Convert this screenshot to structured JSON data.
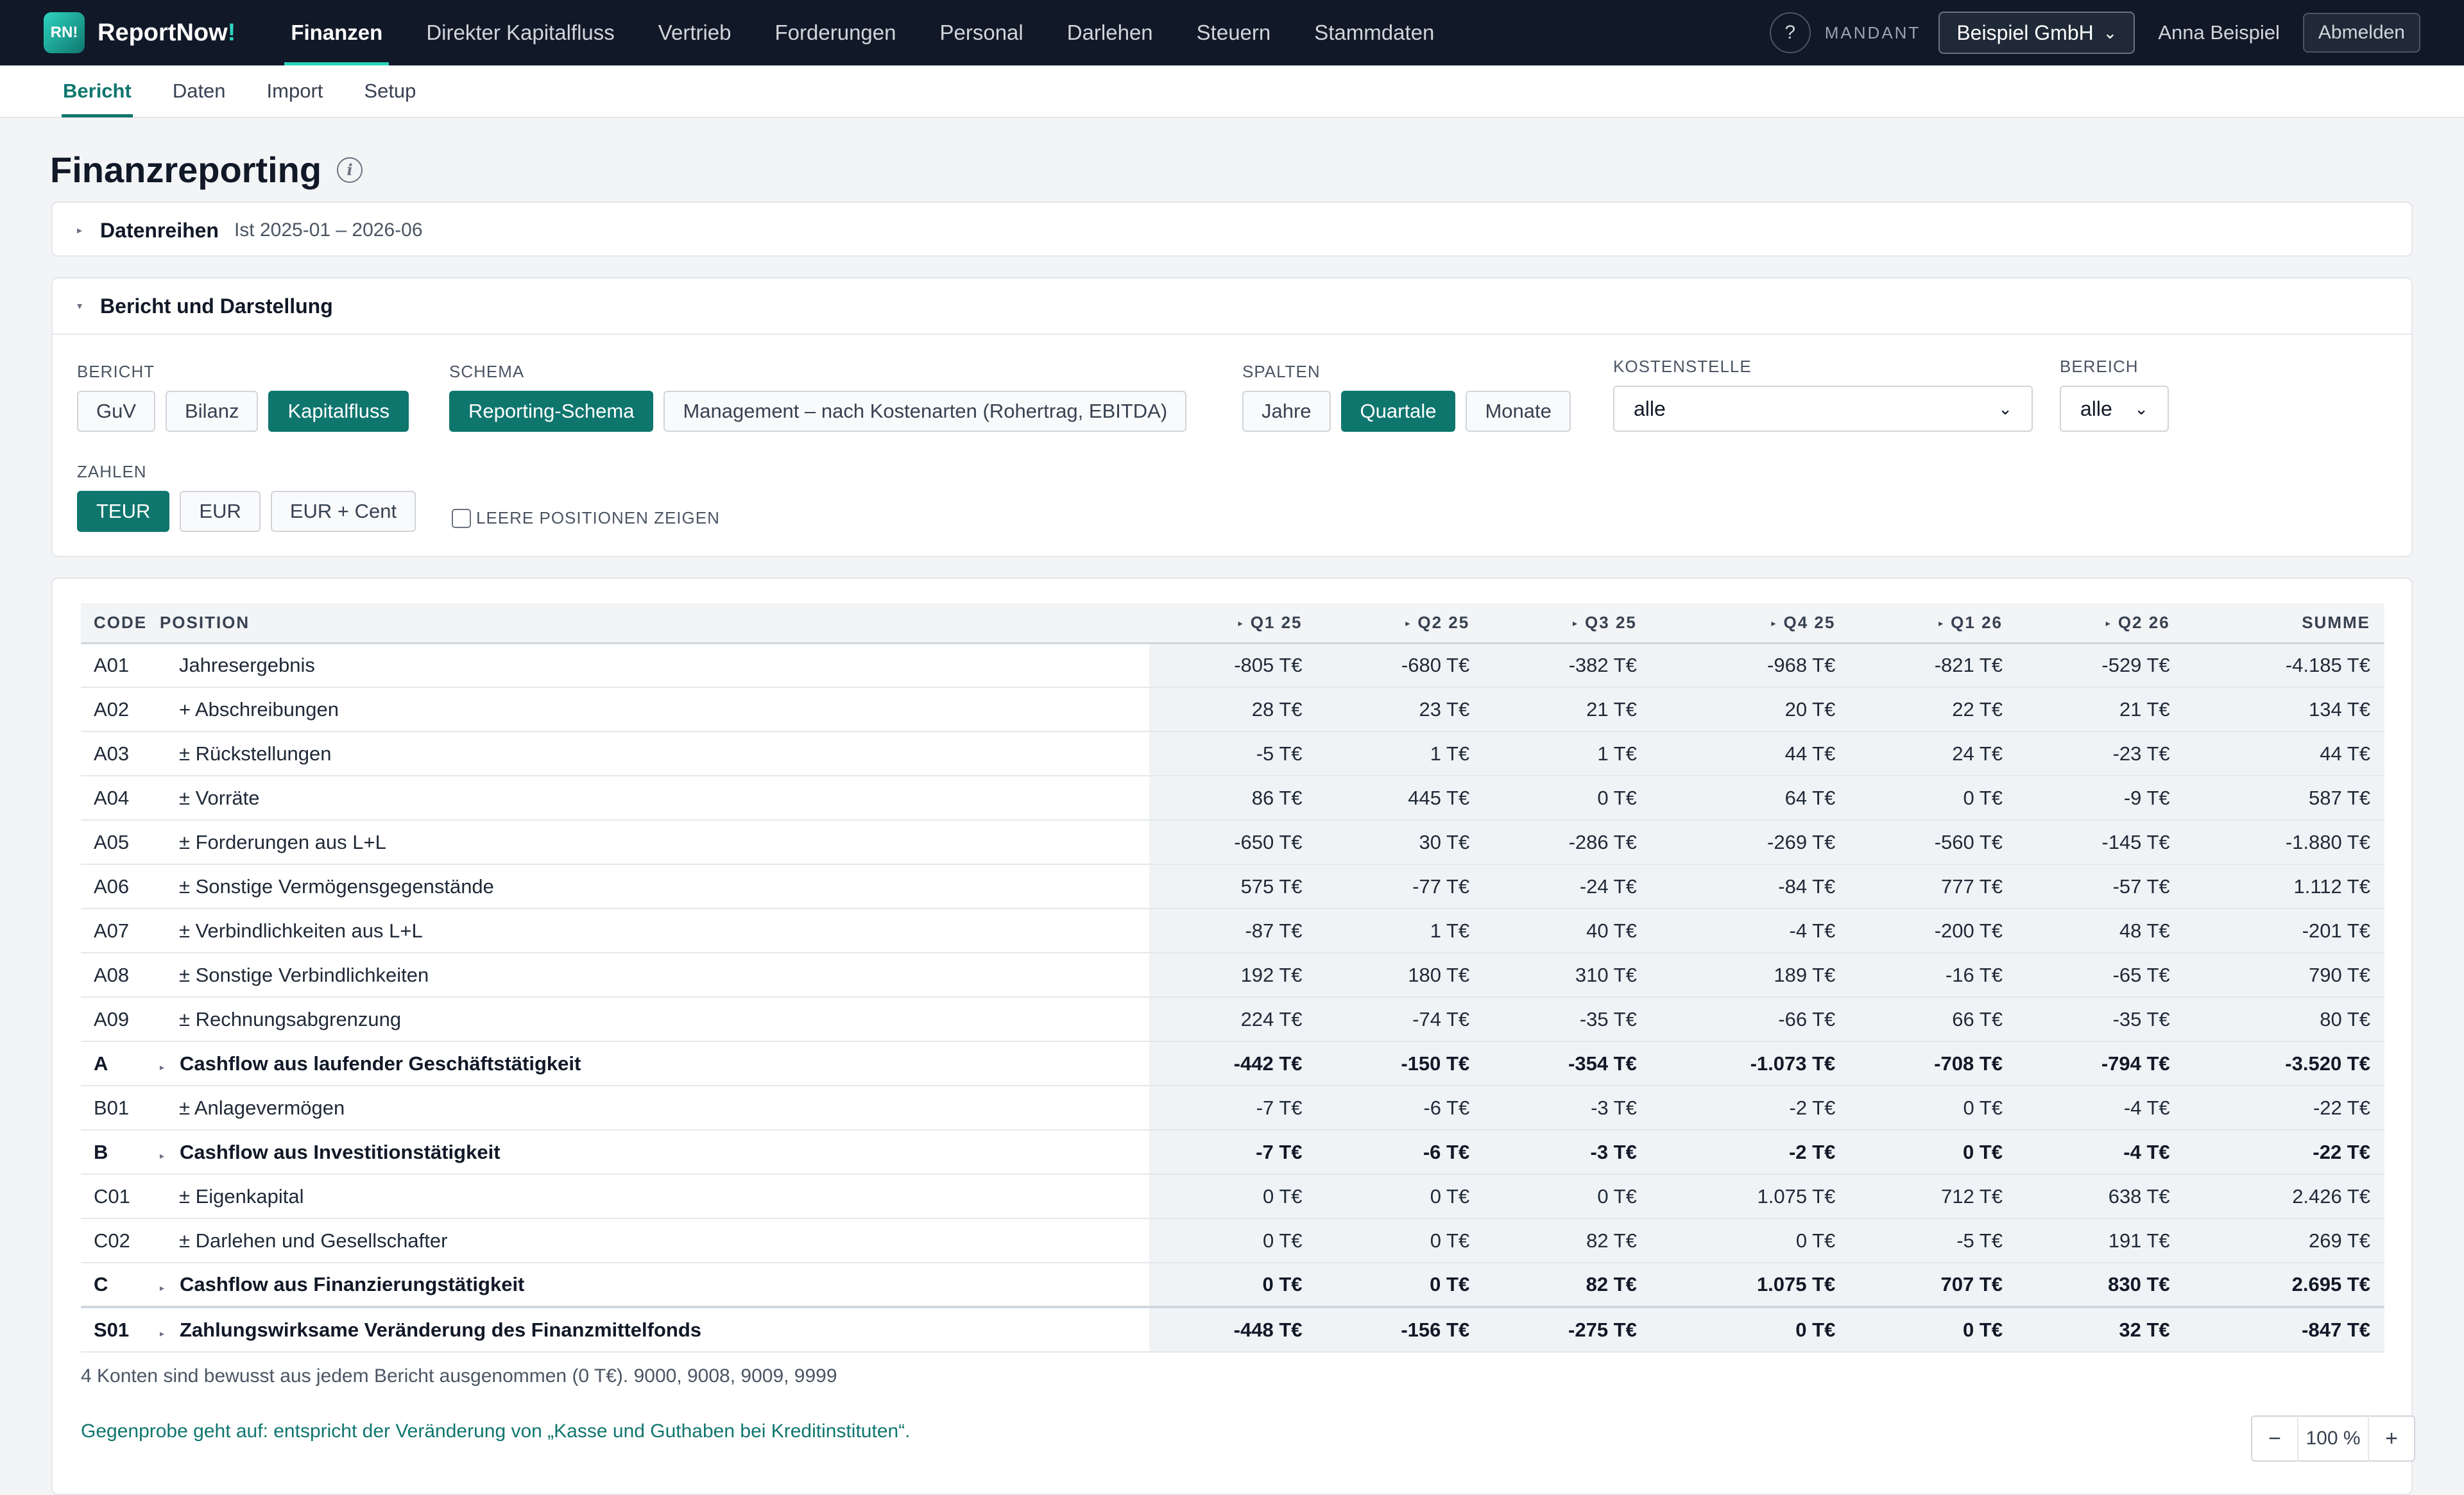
{
  "brand": {
    "logo": "RN!",
    "name": "ReportNow",
    "bang": "!"
  },
  "nav": [
    "Finanzen",
    "Direkter Kapitalfluss",
    "Vertrieb",
    "Forderungen",
    "Personal",
    "Darlehen",
    "Steuern",
    "Stammdaten"
  ],
  "topbar": {
    "help": "?",
    "mandant_label": "MANDANT",
    "mandant_value": "Beispiel GmbH",
    "user": "Anna Beispiel",
    "logout": "Abmelden"
  },
  "subnav": [
    "Bericht",
    "Daten",
    "Import",
    "Setup"
  ],
  "page": {
    "title": "Finanzreporting",
    "info_icon": "i"
  },
  "datenreihen": {
    "title": "Datenreihen",
    "sub": "Ist 2025-01 – 2026-06"
  },
  "bericht_panel": {
    "title": "Bericht und Darstellung",
    "bericht": {
      "label": "BERICHT",
      "options": [
        "GuV",
        "Bilanz",
        "Kapitalfluss"
      ],
      "active": "Kapitalfluss"
    },
    "schema": {
      "label": "SCHEMA",
      "options": [
        "Reporting-Schema",
        "Management – nach Kostenarten (Rohertrag, EBITDA)"
      ],
      "active": "Reporting-Schema"
    },
    "spalten": {
      "label": "SPALTEN",
      "options": [
        "Jahre",
        "Quartale",
        "Monate"
      ],
      "active": "Quartale"
    },
    "kostenstelle": {
      "label": "KOSTENSTELLE",
      "value": "alle"
    },
    "bereich": {
      "label": "BEREICH",
      "value": "alle"
    },
    "zahlen": {
      "label": "ZAHLEN",
      "options": [
        "TEUR",
        "EUR",
        "EUR + Cent"
      ],
      "active": "TEUR"
    },
    "leere": "LEERE POSITIONEN ZEIGEN"
  },
  "table": {
    "headers": {
      "code": "CODE",
      "position": "POSITION",
      "cols": [
        "Q1 25",
        "Q2 25",
        "Q3 25",
        "Q4 25",
        "Q1 26",
        "Q2 26"
      ],
      "sum": "SUMME"
    },
    "rows": [
      {
        "code": "A01",
        "pos": "Jahresergebnis",
        "vals": [
          "-805 T€",
          "-680 T€",
          "-382 T€",
          "-968 T€",
          "-821 T€",
          "-529 T€"
        ],
        "sum": "-4.185 T€",
        "bold": false
      },
      {
        "code": "A02",
        "pos": "+ Abschreibungen",
        "vals": [
          "28 T€",
          "23 T€",
          "21 T€",
          "20 T€",
          "22 T€",
          "21 T€"
        ],
        "sum": "134 T€",
        "bold": false
      },
      {
        "code": "A03",
        "pos": "± Rückstellungen",
        "vals": [
          "-5 T€",
          "1 T€",
          "1 T€",
          "44 T€",
          "24 T€",
          "-23 T€"
        ],
        "sum": "44 T€",
        "bold": false
      },
      {
        "code": "A04",
        "pos": "± Vorräte",
        "vals": [
          "86 T€",
          "445 T€",
          "0 T€",
          "64 T€",
          "0 T€",
          "-9 T€"
        ],
        "sum": "587 T€",
        "bold": false
      },
      {
        "code": "A05",
        "pos": "± Forderungen aus L+L",
        "vals": [
          "-650 T€",
          "30 T€",
          "-286 T€",
          "-269 T€",
          "-560 T€",
          "-145 T€"
        ],
        "sum": "-1.880 T€",
        "bold": false
      },
      {
        "code": "A06",
        "pos": "± Sonstige Vermögensgegenstände",
        "vals": [
          "575 T€",
          "-77 T€",
          "-24 T€",
          "-84 T€",
          "777 T€",
          "-57 T€"
        ],
        "sum": "1.112 T€",
        "bold": false
      },
      {
        "code": "A07",
        "pos": "± Verbindlichkeiten aus L+L",
        "vals": [
          "-87 T€",
          "1 T€",
          "40 T€",
          "-4 T€",
          "-200 T€",
          "48 T€"
        ],
        "sum": "-201 T€",
        "bold": false
      },
      {
        "code": "A08",
        "pos": "± Sonstige Verbindlichkeiten",
        "vals": [
          "192 T€",
          "180 T€",
          "310 T€",
          "189 T€",
          "-16 T€",
          "-65 T€"
        ],
        "sum": "790 T€",
        "bold": false
      },
      {
        "code": "A09",
        "pos": "± Rechnungsabgrenzung",
        "vals": [
          "224 T€",
          "-74 T€",
          "-35 T€",
          "-66 T€",
          "66 T€",
          "-35 T€"
        ],
        "sum": "80 T€",
        "bold": false
      },
      {
        "code": "A",
        "pos": "Cashflow aus laufender Geschäftstätigkeit",
        "vals": [
          "-442 T€",
          "-150 T€",
          "-354 T€",
          "-1.073 T€",
          "-708 T€",
          "-794 T€"
        ],
        "sum": "-3.520 T€",
        "bold": true
      },
      {
        "code": "B01",
        "pos": "± Anlagevermögen",
        "vals": [
          "-7 T€",
          "-6 T€",
          "-3 T€",
          "-2 T€",
          "0 T€",
          "-4 T€"
        ],
        "sum": "-22 T€",
        "bold": false
      },
      {
        "code": "B",
        "pos": "Cashflow aus Investitionstätigkeit",
        "vals": [
          "-7 T€",
          "-6 T€",
          "-3 T€",
          "-2 T€",
          "0 T€",
          "-4 T€"
        ],
        "sum": "-22 T€",
        "bold": true
      },
      {
        "code": "C01",
        "pos": "± Eigenkapital",
        "vals": [
          "0 T€",
          "0 T€",
          "0 T€",
          "1.075 T€",
          "712 T€",
          "638 T€"
        ],
        "sum": "2.426 T€",
        "bold": false
      },
      {
        "code": "C02",
        "pos": "± Darlehen und Gesellschafter",
        "vals": [
          "0 T€",
          "0 T€",
          "82 T€",
          "0 T€",
          "-5 T€",
          "191 T€"
        ],
        "sum": "269 T€",
        "bold": false
      },
      {
        "code": "C",
        "pos": "Cashflow aus Finanzierungstätigkeit",
        "vals": [
          "0 T€",
          "0 T€",
          "82 T€",
          "1.075 T€",
          "707 T€",
          "830 T€"
        ],
        "sum": "2.695 T€",
        "bold": true
      },
      {
        "code": "S01",
        "pos": "Zahlungswirksame Veränderung des Finanzmittelfonds",
        "vals": [
          "-448 T€",
          "-156 T€",
          "-275 T€",
          "0 T€",
          "0 T€",
          "32 T€"
        ],
        "sum": "-847 T€",
        "bold": true,
        "total": true
      }
    ]
  },
  "notes": {
    "excluded": "4 Konten sind bewusst aus jedem Bericht ausgenommen (0 T€). 9000, 9008, 9009, 9999",
    "check": "Gegenprobe geht auf: entspricht der Veränderung von „Kasse und Guthaben bei Kreditinstituten“."
  },
  "zoom": {
    "minus": "−",
    "value": "100 %",
    "plus": "+"
  },
  "colors": {
    "accent": "#0f766e",
    "topbar": "#111827",
    "brand_accent": "#2dd4bf"
  }
}
